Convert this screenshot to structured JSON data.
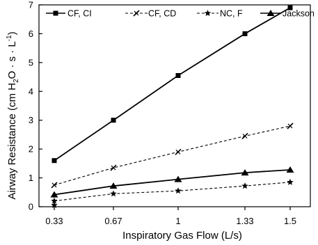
{
  "chart_data": {
    "type": "line",
    "xlabel": "Inspiratory Gas Flow (L/s)",
    "ylabel_parts": {
      "pre": "Airway Resistance (cm H",
      "sub": "2",
      "mid": "O · s · L",
      "sup": "-1",
      "post": ")"
    },
    "x_tick_labels": [
      "0.33",
      "0.67",
      "1",
      "1.33",
      "1.5"
    ],
    "y_ticks": [
      0,
      1,
      2,
      3,
      4,
      5,
      6,
      7
    ],
    "xlim": [
      0.33,
      1.5
    ],
    "ylim": [
      0,
      7
    ],
    "grid": false,
    "legend_position": "top",
    "series": [
      {
        "name": "CF, CI",
        "marker": "square",
        "dash": "solid",
        "x": [
          0.33,
          0.67,
          1,
          1.33,
          1.5
        ],
        "values": [
          1.6,
          3.0,
          4.55,
          6.0,
          6.9
        ]
      },
      {
        "name": "CF, CD",
        "marker": "x",
        "dash": "dashed",
        "x": [
          0.33,
          0.67,
          1,
          1.33,
          1.5
        ],
        "values": [
          0.75,
          1.35,
          1.9,
          2.45,
          2.8
        ]
      },
      {
        "name": "NC, F",
        "marker": "star",
        "dash": "dashed",
        "x": [
          0.33,
          0.67,
          1,
          1.33,
          1.5
        ],
        "values": [
          0.2,
          0.45,
          0.55,
          0.72,
          0.85
        ]
      },
      {
        "name": "Jackson",
        "marker": "triangle",
        "dash": "solid",
        "x": [
          0.33,
          0.67,
          1,
          1.33,
          1.5
        ],
        "values": [
          0.42,
          0.72,
          0.95,
          1.18,
          1.28
        ]
      }
    ],
    "extra_points": [
      {
        "series": "NC, F",
        "x": 0.33,
        "y": 0.05
      }
    ]
  }
}
